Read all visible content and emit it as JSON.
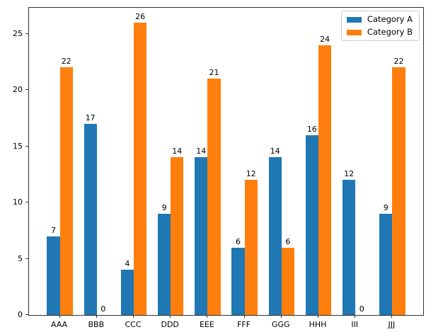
{
  "chart_data": {
    "type": "bar",
    "title": "",
    "xlabel": "",
    "ylabel": "",
    "categories": [
      "AAA",
      "BBB",
      "CCC",
      "DDD",
      "EEE",
      "FFF",
      "GGG",
      "HHH",
      "III",
      "JJJ"
    ],
    "series": [
      {
        "name": "Category A",
        "color": "#1f77b4",
        "values": [
          7,
          17,
          4,
          9,
          14,
          6,
          14,
          16,
          12,
          9
        ]
      },
      {
        "name": "Category B",
        "color": "#ff7f0e",
        "values": [
          22,
          0,
          26,
          14,
          21,
          12,
          6,
          24,
          0,
          22
        ]
      }
    ],
    "bar_labels_shown": true,
    "y_ticks": [
      0,
      5,
      10,
      15,
      20,
      25
    ],
    "ylim": [
      0,
      27.3
    ],
    "grid": false,
    "legend_position": "upper right"
  }
}
